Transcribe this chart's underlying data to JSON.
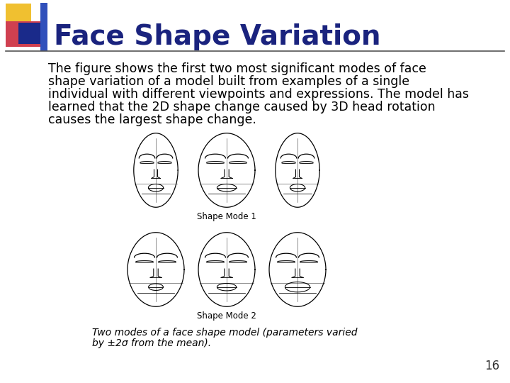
{
  "title": "Face Shape Variation",
  "title_color": "#1a237e",
  "title_fontsize": 28,
  "body_lines": [
    "The figure shows the first two most significant modes of face",
    "shape variation of a model built from examples of a single",
    "individual with different viewpoints and expressions. The model has",
    "learned that the 2D shape change caused by 3D head rotation",
    "causes the largest shape change."
  ],
  "body_fontsize": 12.5,
  "body_color": "#000000",
  "caption_line1": "Two modes of a face shape model (parameters varied",
  "caption_line2": "by ±2σ from the mean).",
  "caption_fontsize": 10,
  "caption_color": "#000000",
  "page_number": "16",
  "page_num_fontsize": 12,
  "bg_color": "#ffffff",
  "image_label1": "Shape Mode 1",
  "image_label2": "Shape Mode 2",
  "label_fontsize": 8.5,
  "deco_yellow": "#f0c030",
  "deco_red": "#d04050",
  "deco_blue_dark": "#1a2a8a",
  "deco_blue_mid": "#3050bb"
}
